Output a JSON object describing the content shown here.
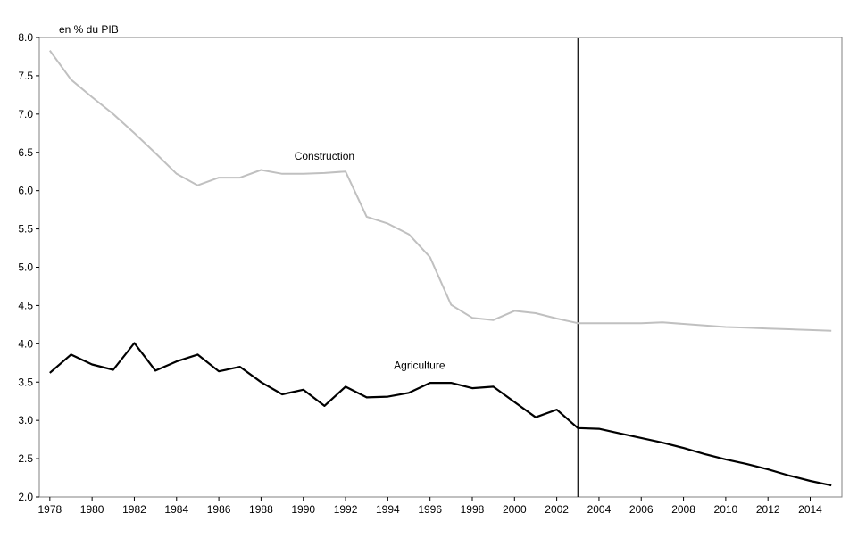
{
  "chart_data": {
    "type": "line",
    "ylabel": "en % du PIB",
    "xlim": [
      1977.5,
      2015.5
    ],
    "ylim": [
      2.0,
      8.0
    ],
    "y_ticks": [
      2.0,
      2.5,
      3.0,
      3.5,
      4.0,
      4.5,
      5.0,
      5.5,
      6.0,
      6.5,
      7.0,
      7.5,
      8.0
    ],
    "y_tick_labels": [
      "2.0",
      "2.5",
      "3.0",
      "3.5",
      "4.0",
      "4.5",
      "5.0",
      "5.5",
      "6.0",
      "6.5",
      "7.0",
      "7.5",
      "8.0"
    ],
    "x_ticks": [
      1978,
      1980,
      1982,
      1984,
      1986,
      1988,
      1990,
      1992,
      1994,
      1996,
      1998,
      2000,
      2002,
      2004,
      2006,
      2008,
      2010,
      2012,
      2014
    ],
    "x_tick_labels": [
      "1978",
      "1980",
      "1982",
      "1984",
      "1986",
      "1988",
      "1990",
      "1992",
      "1994",
      "1996",
      "1998",
      "2000",
      "2002",
      "2004",
      "2006",
      "2008",
      "2010",
      "2012",
      "2014"
    ],
    "grid": false,
    "legend": "none",
    "vertical_line_x": 2003,
    "x": [
      1978,
      1979,
      1980,
      1981,
      1982,
      1983,
      1984,
      1985,
      1986,
      1987,
      1988,
      1989,
      1990,
      1991,
      1992,
      1993,
      1994,
      1995,
      1996,
      1997,
      1998,
      1999,
      2000,
      2001,
      2002,
      2003,
      2004,
      2005,
      2006,
      2007,
      2008,
      2009,
      2010,
      2011,
      2012,
      2013,
      2014,
      2015
    ],
    "series": [
      {
        "name": "Construction",
        "color": "#c0c0c0",
        "label_x": 1991,
        "label_y": 6.45,
        "values": [
          7.83,
          7.45,
          7.22,
          7.0,
          6.75,
          6.49,
          6.22,
          6.07,
          6.17,
          6.17,
          6.27,
          6.22,
          6.22,
          6.23,
          6.25,
          5.66,
          5.57,
          5.43,
          5.13,
          4.51,
          4.34,
          4.31,
          4.43,
          4.4,
          4.33,
          4.27,
          4.27,
          4.27,
          4.27,
          4.28,
          4.26,
          4.24,
          4.22,
          4.21,
          4.2,
          4.19,
          4.18,
          4.17
        ]
      },
      {
        "name": "Agriculture",
        "color": "#000000",
        "label_x": 1995.5,
        "label_y": 3.72,
        "values": [
          3.62,
          3.86,
          3.73,
          3.66,
          4.01,
          3.65,
          3.77,
          3.86,
          3.64,
          3.7,
          3.5,
          3.34,
          3.4,
          3.19,
          3.44,
          3.3,
          3.31,
          3.36,
          3.49,
          3.49,
          3.42,
          3.44,
          3.24,
          3.04,
          3.14,
          2.9,
          2.89,
          2.83,
          2.77,
          2.71,
          2.64,
          2.56,
          2.49,
          2.43,
          2.36,
          2.28,
          2.21,
          2.15
        ]
      }
    ]
  }
}
